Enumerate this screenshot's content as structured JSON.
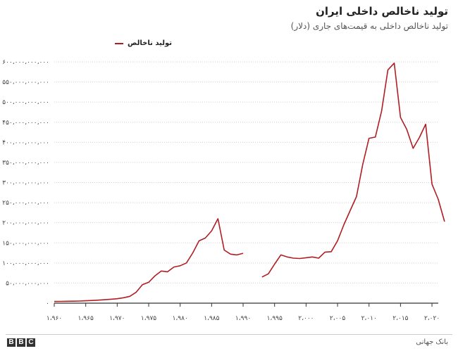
{
  "header": {
    "title": "تولید ناخالص داخلی ایران",
    "subtitle": "تولید ناخالص داخلی به قیمت‌های جاری (دلار)"
  },
  "legend": {
    "label": "تولید ناخالص"
  },
  "footer": {
    "logo_letters": [
      "B",
      "B",
      "C"
    ],
    "source": "بانک جهانی"
  },
  "colors": {
    "line": "#b01e23",
    "grid": "#d0d0d0",
    "axis": "#333333"
  },
  "chart_data": {
    "type": "line",
    "title": "تولید ناخالص داخلی ایران",
    "subtitle": "تولید ناخالص داخلی به قیمت‌های جاری (دلار)",
    "xlabel": "",
    "ylabel": "",
    "xlim": [
      1960,
      2021
    ],
    "ylim": [
      0,
      600000000000
    ],
    "y_ticks": [
      0,
      50000000000,
      100000000000,
      150000000000,
      200000000000,
      250000000000,
      300000000000,
      350000000000,
      400000000000,
      450000000000,
      500000000000,
      550000000000,
      600000000000
    ],
    "y_tick_labels": [
      "۰",
      "۵۰،۰۰۰،۰۰۰،۰۰۰",
      "۱۰۰،۰۰۰،۰۰۰،۰۰۰",
      "۱۵۰،۰۰۰،۰۰۰،۰۰۰",
      "۲۰۰،۰۰۰،۰۰۰،۰۰۰",
      "۲۵۰،۰۰۰،۰۰۰،۰۰۰",
      "۳۰۰،۰۰۰،۰۰۰،۰۰۰",
      "۳۵۰،۰۰۰،۰۰۰،۰۰۰",
      "۴۰۰،۰۰۰،۰۰۰،۰۰۰",
      "۴۵۰،۰۰۰،۰۰۰،۰۰۰",
      "۵۰۰،۰۰۰،۰۰۰،۰۰۰",
      "۵۵۰،۰۰۰،۰۰۰،۰۰۰",
      "۶۰۰،۰۰۰،۰۰۰،۰۰۰"
    ],
    "x_ticks": [
      1960,
      1965,
      1970,
      1975,
      1980,
      1985,
      1990,
      1995,
      2000,
      2005,
      2010,
      2015,
      2020
    ],
    "x_tick_labels": [
      "۱،۹۶۰",
      "۱،۹۶۵",
      "۱،۹۷۰",
      "۱،۹۷۵",
      "۱،۹۸۰",
      "۱،۹۸۵",
      "۱،۹۹۰",
      "۱،۹۹۵",
      "۲،۰۰۰",
      "۲،۰۰۵",
      "۲،۰۱۰",
      "۲،۰۱۵",
      "۲،۰۲۰"
    ],
    "grid": true,
    "legend_position": "top-left",
    "series": [
      {
        "name": "تولید ناخالص",
        "color": "#b01e23",
        "segments": [
          [
            [
              1960,
              4200000000
            ],
            [
              1961,
              4400000000
            ],
            [
              1962,
              4700000000
            ],
            [
              1963,
              4900000000
            ],
            [
              1964,
              5200000000
            ],
            [
              1965,
              6000000000
            ],
            [
              1966,
              6600000000
            ],
            [
              1967,
              7500000000
            ],
            [
              1968,
              8600000000
            ],
            [
              1969,
              9800000000
            ],
            [
              1970,
              11000000000
            ],
            [
              1971,
              13500000000
            ],
            [
              1972,
              17000000000
            ],
            [
              1973,
              27000000000
            ],
            [
              1974,
              46000000000
            ],
            [
              1975,
              52000000000
            ],
            [
              1976,
              68000000000
            ],
            [
              1977,
              80000000000
            ],
            [
              1978,
              78000000000
            ],
            [
              1979,
              90000000000
            ],
            [
              1980,
              93000000000
            ],
            [
              1981,
              100000000000
            ],
            [
              1982,
              125000000000
            ],
            [
              1983,
              155000000000
            ],
            [
              1984,
              162000000000
            ],
            [
              1985,
              180000000000
            ],
            [
              1986,
              210000000000
            ],
            [
              1987,
              132000000000
            ],
            [
              1988,
              122000000000
            ],
            [
              1989,
              120000000000
            ],
            [
              1990,
              124000000000
            ]
          ],
          [
            [
              1993,
              65000000000
            ],
            [
              1994,
              73000000000
            ],
            [
              1995,
              97000000000
            ],
            [
              1996,
              120000000000
            ],
            [
              1997,
              115000000000
            ],
            [
              1998,
              112000000000
            ],
            [
              1999,
              111000000000
            ],
            [
              2000,
              113000000000
            ],
            [
              2001,
              115000000000
            ],
            [
              2002,
              112000000000
            ],
            [
              2003,
              127000000000
            ],
            [
              2004,
              128000000000
            ],
            [
              2005,
              155000000000
            ],
            [
              2006,
              195000000000
            ],
            [
              2007,
              230000000000
            ],
            [
              2008,
              265000000000
            ],
            [
              2009,
              345000000000
            ],
            [
              2010,
              410000000000
            ],
            [
              2011,
              413000000000
            ],
            [
              2012,
              478000000000
            ],
            [
              2013,
              580000000000
            ],
            [
              2014,
              597000000000
            ],
            [
              2015,
              462000000000
            ],
            [
              2016,
              432000000000
            ],
            [
              2017,
              385000000000
            ],
            [
              2018,
              412000000000
            ],
            [
              2019,
              445000000000
            ],
            [
              2020,
              296000000000
            ],
            [
              2021,
              258000000000
            ],
            [
              2022,
              203000000000
            ]
          ]
        ]
      }
    ]
  }
}
